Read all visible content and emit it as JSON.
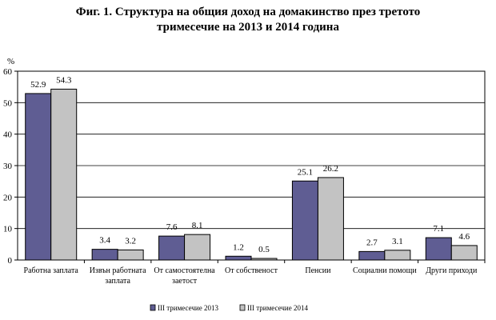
{
  "chart_data": {
    "type": "bar",
    "title_lines": [
      "Фиг. 1. Структура на общия доход на домакинство през третото",
      "тримесечие на 2013 и 2014 година"
    ],
    "ylabel": "%",
    "xlabel": "",
    "ylim": [
      0,
      60
    ],
    "yticks": [
      0,
      10,
      20,
      30,
      40,
      50,
      60
    ],
    "grid": true,
    "legend_position": "bottom",
    "categories": [
      [
        "Работна заплата"
      ],
      [
        "Извън работната",
        "заплата"
      ],
      [
        "От самостоятелна",
        "заетост"
      ],
      [
        "От собственост"
      ],
      [
        "Пенсии"
      ],
      [
        "Социални помощи"
      ],
      [
        "Други приходи"
      ]
    ],
    "series": [
      {
        "name": "III  тримесечие 2013",
        "color": "#5f5d93",
        "values": [
          52.9,
          3.4,
          7.6,
          1.2,
          25.1,
          2.7,
          7.1
        ]
      },
      {
        "name": "III  тримесечие 2014",
        "color": "#c3c3c3",
        "values": [
          54.3,
          3.2,
          8.1,
          0.5,
          26.2,
          3.1,
          4.6
        ]
      }
    ]
  }
}
